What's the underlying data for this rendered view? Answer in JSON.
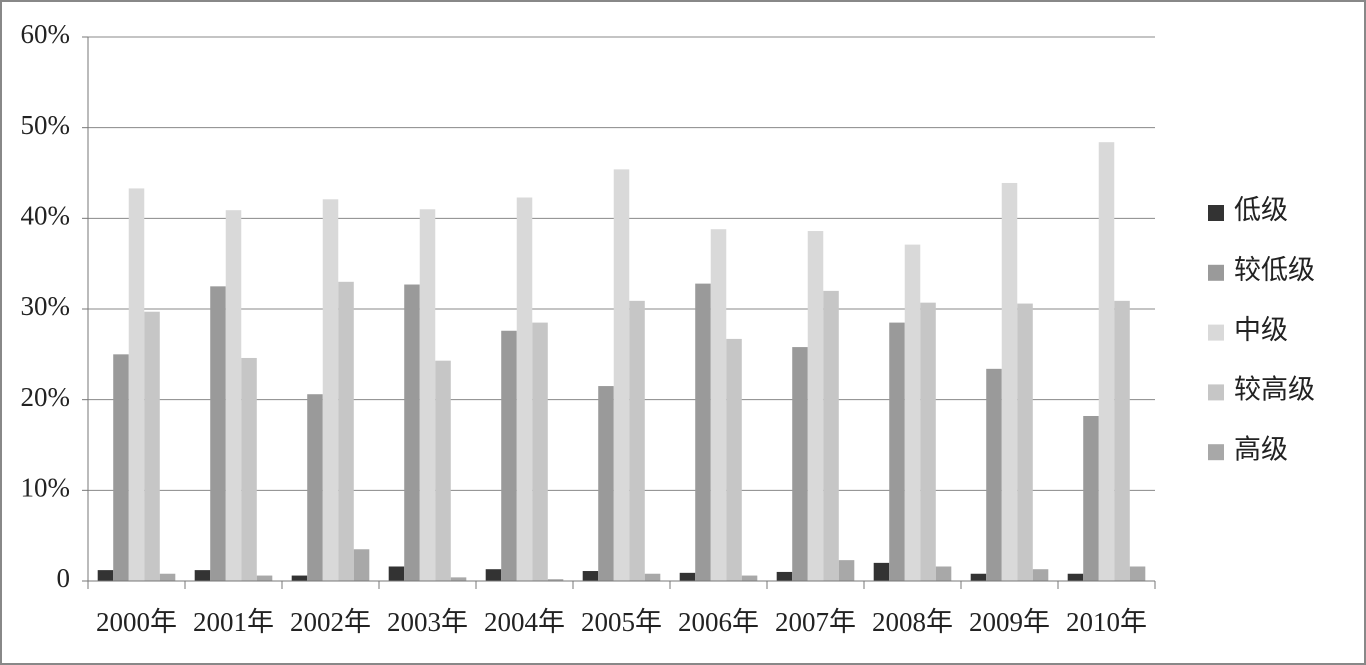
{
  "chart_data": {
    "type": "bar",
    "categories": [
      "2000年",
      "2001年",
      "2002年",
      "2003年",
      "2004年",
      "2005年",
      "2006年",
      "2007年",
      "2008年",
      "2009年",
      "2010年"
    ],
    "series": [
      {
        "name": "低级",
        "color": "#333333",
        "values": [
          1.2,
          1.2,
          0.6,
          1.6,
          1.3,
          1.1,
          0.9,
          1.0,
          2.0,
          0.8,
          0.8
        ]
      },
      {
        "name": "较低级",
        "color": "#9a9a9a",
        "values": [
          25.0,
          32.5,
          20.6,
          32.7,
          27.6,
          21.5,
          32.8,
          25.8,
          28.5,
          23.4,
          18.2
        ]
      },
      {
        "name": "中级",
        "color": "#d9d9d9",
        "values": [
          43.3,
          40.9,
          42.1,
          41.0,
          42.3,
          45.4,
          38.8,
          38.6,
          37.1,
          43.9,
          48.4
        ]
      },
      {
        "name": "较高级",
        "color": "#c6c6c6",
        "values": [
          29.7,
          24.6,
          33.0,
          24.3,
          28.5,
          30.9,
          26.7,
          32.0,
          30.7,
          30.6,
          30.9
        ]
      },
      {
        "name": "高级",
        "color": "#a8a8a8",
        "values": [
          0.8,
          0.6,
          3.5,
          0.4,
          0.2,
          0.8,
          0.6,
          2.3,
          1.6,
          1.3,
          1.6
        ]
      }
    ],
    "ylim": [
      0,
      60
    ],
    "yticks": [
      0,
      {
        "value": 10,
        "label": "10%"
      },
      {
        "value": 20,
        "label": "20%"
      },
      {
        "value": 30,
        "label": "30%"
      },
      {
        "value": 40,
        "label": "40%"
      },
      {
        "value": 50,
        "label": "50%"
      },
      {
        "value": 60,
        "label": "60%"
      }
    ],
    "grid": true,
    "legend": "right"
  }
}
